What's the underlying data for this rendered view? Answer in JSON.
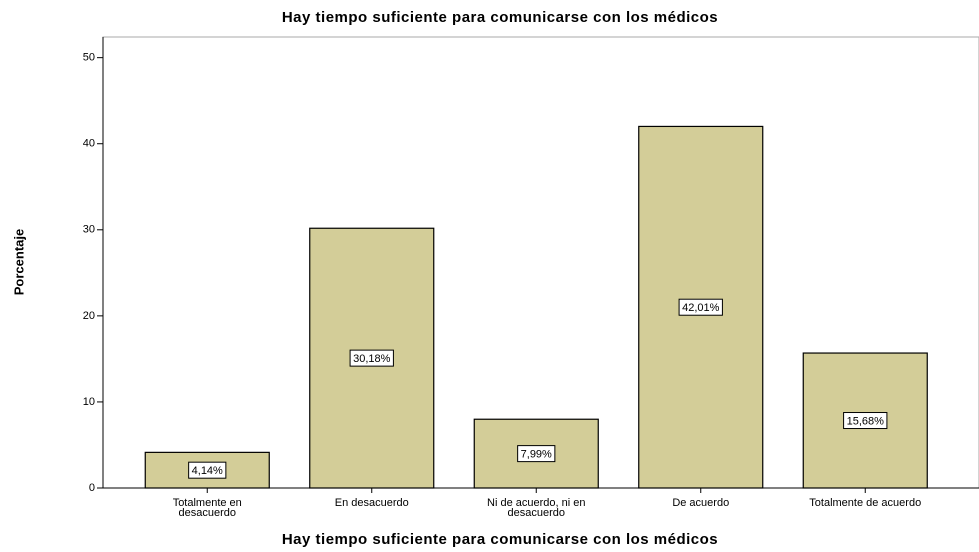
{
  "chart_data": {
    "type": "bar",
    "title": "Hay tiempo suficiente para comunicarse con los médicos",
    "x_label": "Hay tiempo suficiente para comunicarse con los médicos",
    "y_label": "Porcentaje",
    "categories": [
      "Totalmente en desacuerdo",
      "En desacuerdo",
      "Ni de acuerdo, ni en desacuerdo",
      "De acuerdo",
      "Totalmente de acuerdo"
    ],
    "values": [
      4.14,
      30.18,
      7.99,
      42.01,
      15.68
    ],
    "value_labels": [
      "4,14%",
      "30,18%",
      "7,99%",
      "42,01%",
      "15,68%"
    ],
    "color": "#d3cd98",
    "ylim": [
      0,
      52.4
    ],
    "yticks": [
      0,
      10,
      20,
      30,
      40,
      50
    ],
    "grid": false
  }
}
